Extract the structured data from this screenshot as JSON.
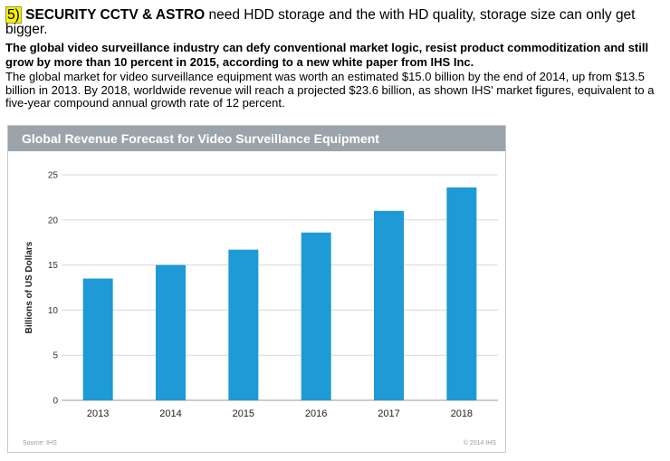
{
  "intro": {
    "number": "5)",
    "brand": "SECURITY CCTV & ASTRO",
    "text": " need HDD storage and the with HD quality, storage size can only get bigger."
  },
  "lead": "The global video surveillance industry can defy conventional market logic, resist product commoditization and still grow by more than 10 percent in 2015, according to a new white paper from IHS Inc.",
  "body": "The global market for video surveillance equipment was worth an estimated $15.0 billion by the end of 2014, up from $13.5 billion in 2013. By 2018, worldwide revenue will reach a projected $23.6 billion, as shown IHS' market figures, equivalent to a five-year compound annual growth rate of 12 percent.",
  "chart_data": {
    "type": "bar",
    "title": "Global Revenue Forecast for Video Surveillance Equipment",
    "ylabel": "Billions of US Dollars",
    "xlabel": "",
    "categories": [
      "2013",
      "2014",
      "2015",
      "2016",
      "2017",
      "2018"
    ],
    "values": [
      13.5,
      15.0,
      16.7,
      18.6,
      21.0,
      23.6
    ],
    "ylim": [
      0,
      25
    ],
    "yticks": [
      0,
      5,
      10,
      15,
      20,
      25
    ],
    "grid": "horizontal",
    "bar_color": "#1e9ad6",
    "source": "Source: IHS",
    "copyright": "© 2014 IHS"
  }
}
